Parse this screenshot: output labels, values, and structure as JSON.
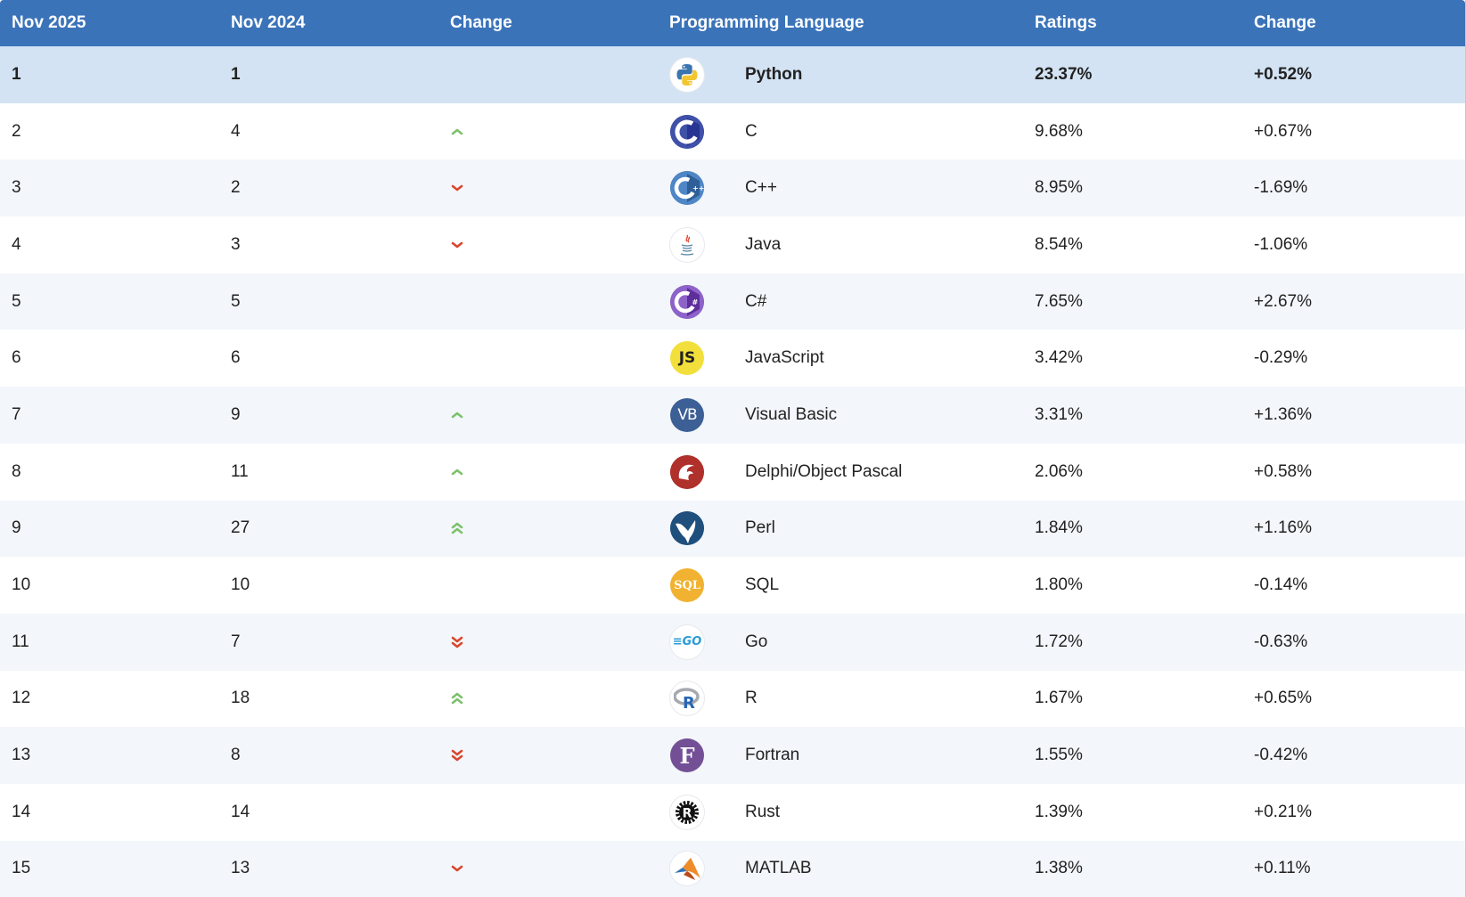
{
  "header": {
    "col_now": "Nov 2025",
    "col_prev": "Nov 2024",
    "col_change": "Change",
    "col_lang": "Programming Language",
    "col_ratings": "Ratings",
    "col_change_pct": "Change"
  },
  "colors": {
    "header_bg": "#3b73b9",
    "top_row_bg": "#d3e3f3",
    "up_arrow": "#7cc16a",
    "down_arrow": "#d9462d"
  },
  "rows": [
    {
      "now": "1",
      "prev": "1",
      "trend": "none",
      "icon": "python-icon",
      "lang": "Python",
      "rating": "23.37%",
      "change": "+0.52%"
    },
    {
      "now": "2",
      "prev": "4",
      "trend": "up",
      "icon": "c-icon",
      "lang": "C",
      "rating": "9.68%",
      "change": "+0.67%"
    },
    {
      "now": "3",
      "prev": "2",
      "trend": "down",
      "icon": "cpp-icon",
      "lang": "C++",
      "rating": "8.95%",
      "change": "-1.69%"
    },
    {
      "now": "4",
      "prev": "3",
      "trend": "down",
      "icon": "java-icon",
      "lang": "Java",
      "rating": "8.54%",
      "change": "-1.06%"
    },
    {
      "now": "5",
      "prev": "5",
      "trend": "none",
      "icon": "csharp-icon",
      "lang": "C#",
      "rating": "7.65%",
      "change": "+2.67%"
    },
    {
      "now": "6",
      "prev": "6",
      "trend": "none",
      "icon": "javascript-icon",
      "lang": "JavaScript",
      "rating": "3.42%",
      "change": "-0.29%"
    },
    {
      "now": "7",
      "prev": "9",
      "trend": "up",
      "icon": "visual-basic-icon",
      "lang": "Visual Basic",
      "rating": "3.31%",
      "change": "+1.36%"
    },
    {
      "now": "8",
      "prev": "11",
      "trend": "up",
      "icon": "delphi-icon",
      "lang": "Delphi/Object Pascal",
      "rating": "2.06%",
      "change": "+0.58%"
    },
    {
      "now": "9",
      "prev": "27",
      "trend": "up2",
      "icon": "perl-icon",
      "lang": "Perl",
      "rating": "1.84%",
      "change": "+1.16%"
    },
    {
      "now": "10",
      "prev": "10",
      "trend": "none",
      "icon": "sql-icon",
      "lang": "SQL",
      "rating": "1.80%",
      "change": "-0.14%"
    },
    {
      "now": "11",
      "prev": "7",
      "trend": "down2",
      "icon": "go-icon",
      "lang": "Go",
      "rating": "1.72%",
      "change": "-0.63%"
    },
    {
      "now": "12",
      "prev": "18",
      "trend": "up2",
      "icon": "r-icon",
      "lang": "R",
      "rating": "1.67%",
      "change": "+0.65%"
    },
    {
      "now": "13",
      "prev": "8",
      "trend": "down2",
      "icon": "fortran-icon",
      "lang": "Fortran",
      "rating": "1.55%",
      "change": "-0.42%"
    },
    {
      "now": "14",
      "prev": "14",
      "trend": "none",
      "icon": "rust-icon",
      "lang": "Rust",
      "rating": "1.39%",
      "change": "+0.21%"
    },
    {
      "now": "15",
      "prev": "13",
      "trend": "down",
      "icon": "matlab-icon",
      "lang": "MATLAB",
      "rating": "1.38%",
      "change": "+0.11%"
    }
  ],
  "logo_text": {
    "javascript": "JS",
    "visual_basic": "VB",
    "sql": "SQL",
    "go": "GO",
    "fortran": "F"
  }
}
